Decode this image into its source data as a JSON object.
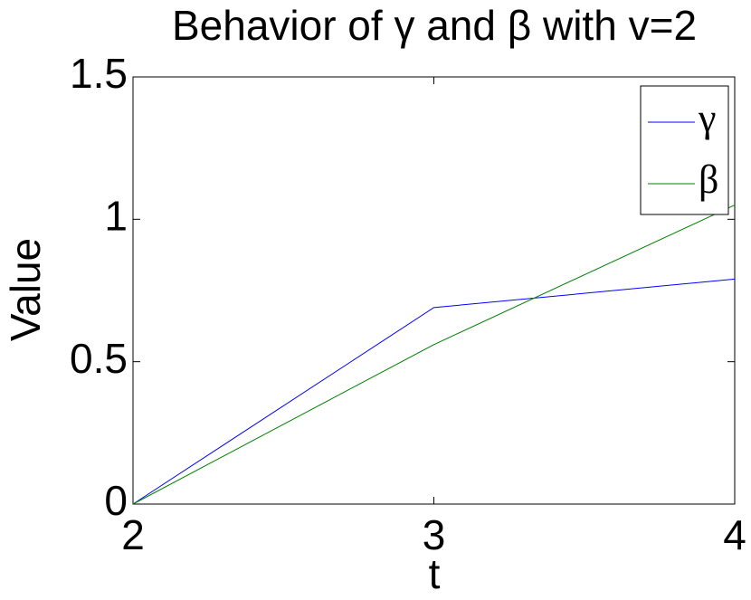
{
  "chart_data": {
    "type": "line",
    "title": "Behavior of γ and β with v=2",
    "x_label": "t",
    "y_label": "Value",
    "x": [
      2,
      3,
      4
    ],
    "series": [
      {
        "name": "γ",
        "color": "#0000ff",
        "values": [
          0,
          0.69,
          0.79
        ]
      },
      {
        "name": "β",
        "color": "#008000",
        "values": [
          0,
          0.56,
          1.05
        ]
      }
    ],
    "xlim": [
      2,
      4
    ],
    "xticks": [
      2,
      3,
      4
    ],
    "ylim": [
      0,
      1.5
    ],
    "yticks": [
      0,
      0.5,
      1,
      1.5
    ],
    "grid": false,
    "legend": "upper right"
  }
}
